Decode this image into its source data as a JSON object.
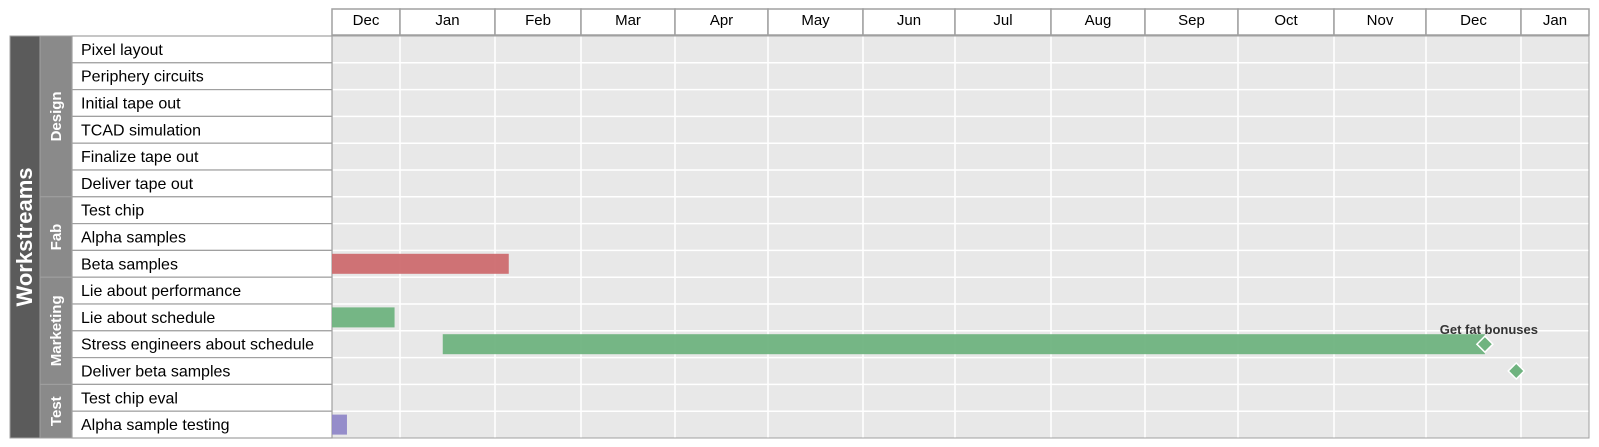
{
  "chart_data": {
    "type": "gantt",
    "title": "",
    "y_axis_label": "Workstreams",
    "timeline_months": [
      "Dec",
      "Jan",
      "Feb",
      "Mar",
      "Apr",
      "May",
      "Jun",
      "Jul",
      "Aug",
      "Sep",
      "Oct",
      "Nov",
      "Dec",
      "Jan"
    ],
    "groups": [
      {
        "name": "Design",
        "tasks": [
          "Pixel layout",
          "Periphery circuits",
          "Initial tape out",
          "TCAD simulation",
          "Finalize tape out",
          "Deliver tape out"
        ]
      },
      {
        "name": "Fab",
        "tasks": [
          "Test chip",
          "Alpha samples",
          "Beta samples"
        ]
      },
      {
        "name": "Marketing",
        "tasks": [
          "Lie about performance",
          "Lie about schedule",
          "Stress engineers about schedule",
          "Deliver beta samples"
        ]
      },
      {
        "name": "Test",
        "tasks": [
          "Test chip eval",
          "Alpha sample testing"
        ]
      }
    ],
    "bars": [
      {
        "task": "Beta samples",
        "start_month": 0.0,
        "end_month": 2.16,
        "color": "#cd6b6f"
      },
      {
        "task": "Lie about schedule",
        "start_month": 0.0,
        "end_month": 0.92,
        "color": "#6fb37f"
      },
      {
        "task": "Stress engineers about schedule",
        "start_month": 1.45,
        "end_month": 12.62,
        "color": "#6fb37f"
      },
      {
        "task": "Alpha sample testing",
        "start_month": 0.0,
        "end_month": 0.22,
        "color": "#9088c8"
      }
    ],
    "milestones": [
      {
        "task": "Stress engineers about schedule",
        "month": 12.62,
        "label": "Get fat bonuses",
        "color": "#6fb37f"
      },
      {
        "task": "Deliver beta samples",
        "month": 12.95,
        "label": "",
        "color": "#6fb37f"
      }
    ],
    "colors": {
      "plot_bg": "#e8e8e8",
      "grid": "#ffffff",
      "border": "#a0a0a0",
      "outer_label_bg": "#5b5b5b",
      "group_label_bg": "#8a8a8a",
      "label_text": "#ffffff"
    }
  }
}
